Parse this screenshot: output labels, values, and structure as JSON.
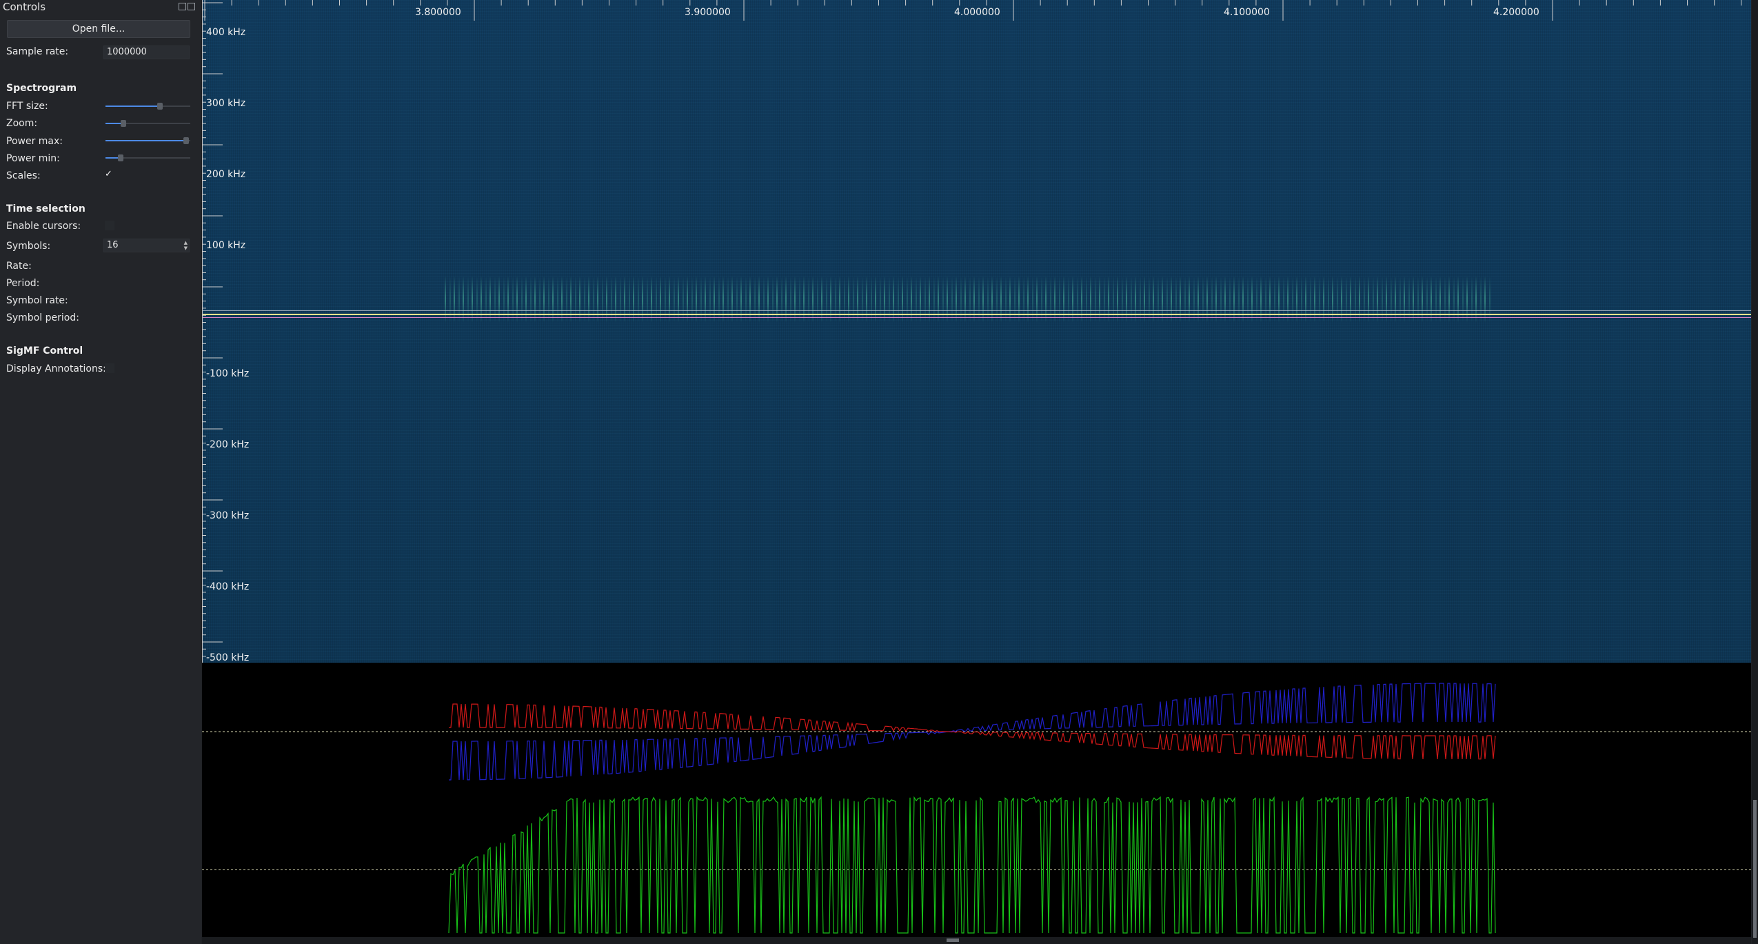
{
  "dock": {
    "title": "Controls",
    "open_file": "Open file...",
    "sample_rate_label": "Sample rate:",
    "sample_rate_value": "1000000",
    "spectrogram_header": "Spectrogram",
    "fft_size_label": "FFT size:",
    "zoom_label": "Zoom:",
    "power_max_label": "Power max:",
    "power_min_label": "Power min:",
    "scales_label": "Scales:",
    "scales_checked": "✓",
    "time_selection_header": "Time selection",
    "enable_cursors_label": "Enable cursors:",
    "symbols_label": "Symbols:",
    "symbols_value": "16",
    "rate_label": "Rate:",
    "period_label": "Period:",
    "symbol_rate_label": "Symbol rate:",
    "symbol_period_label": "Symbol period:",
    "sigmf_header": "SigMF Control",
    "display_annotations_label": "Display Annotations:"
  },
  "freq_axis": [
    "400 kHz",
    "300 kHz",
    "200 kHz",
    "100 kHz",
    "-100 kHz",
    "-200 kHz",
    "-300 kHz",
    "-400 kHz",
    "-500 kHz"
  ],
  "time_axis": [
    "3.800000",
    "3.900000",
    "4.000000",
    "4.100000",
    "4.200000"
  ],
  "colors": {
    "background": "#000000",
    "spectrogram": "#0f3858",
    "i_trace": "#d01818",
    "q_trace": "#2020c8",
    "amplitude_trace": "#18c018",
    "center_line": "#e8e28a",
    "accent": "#4d8ae6"
  }
}
